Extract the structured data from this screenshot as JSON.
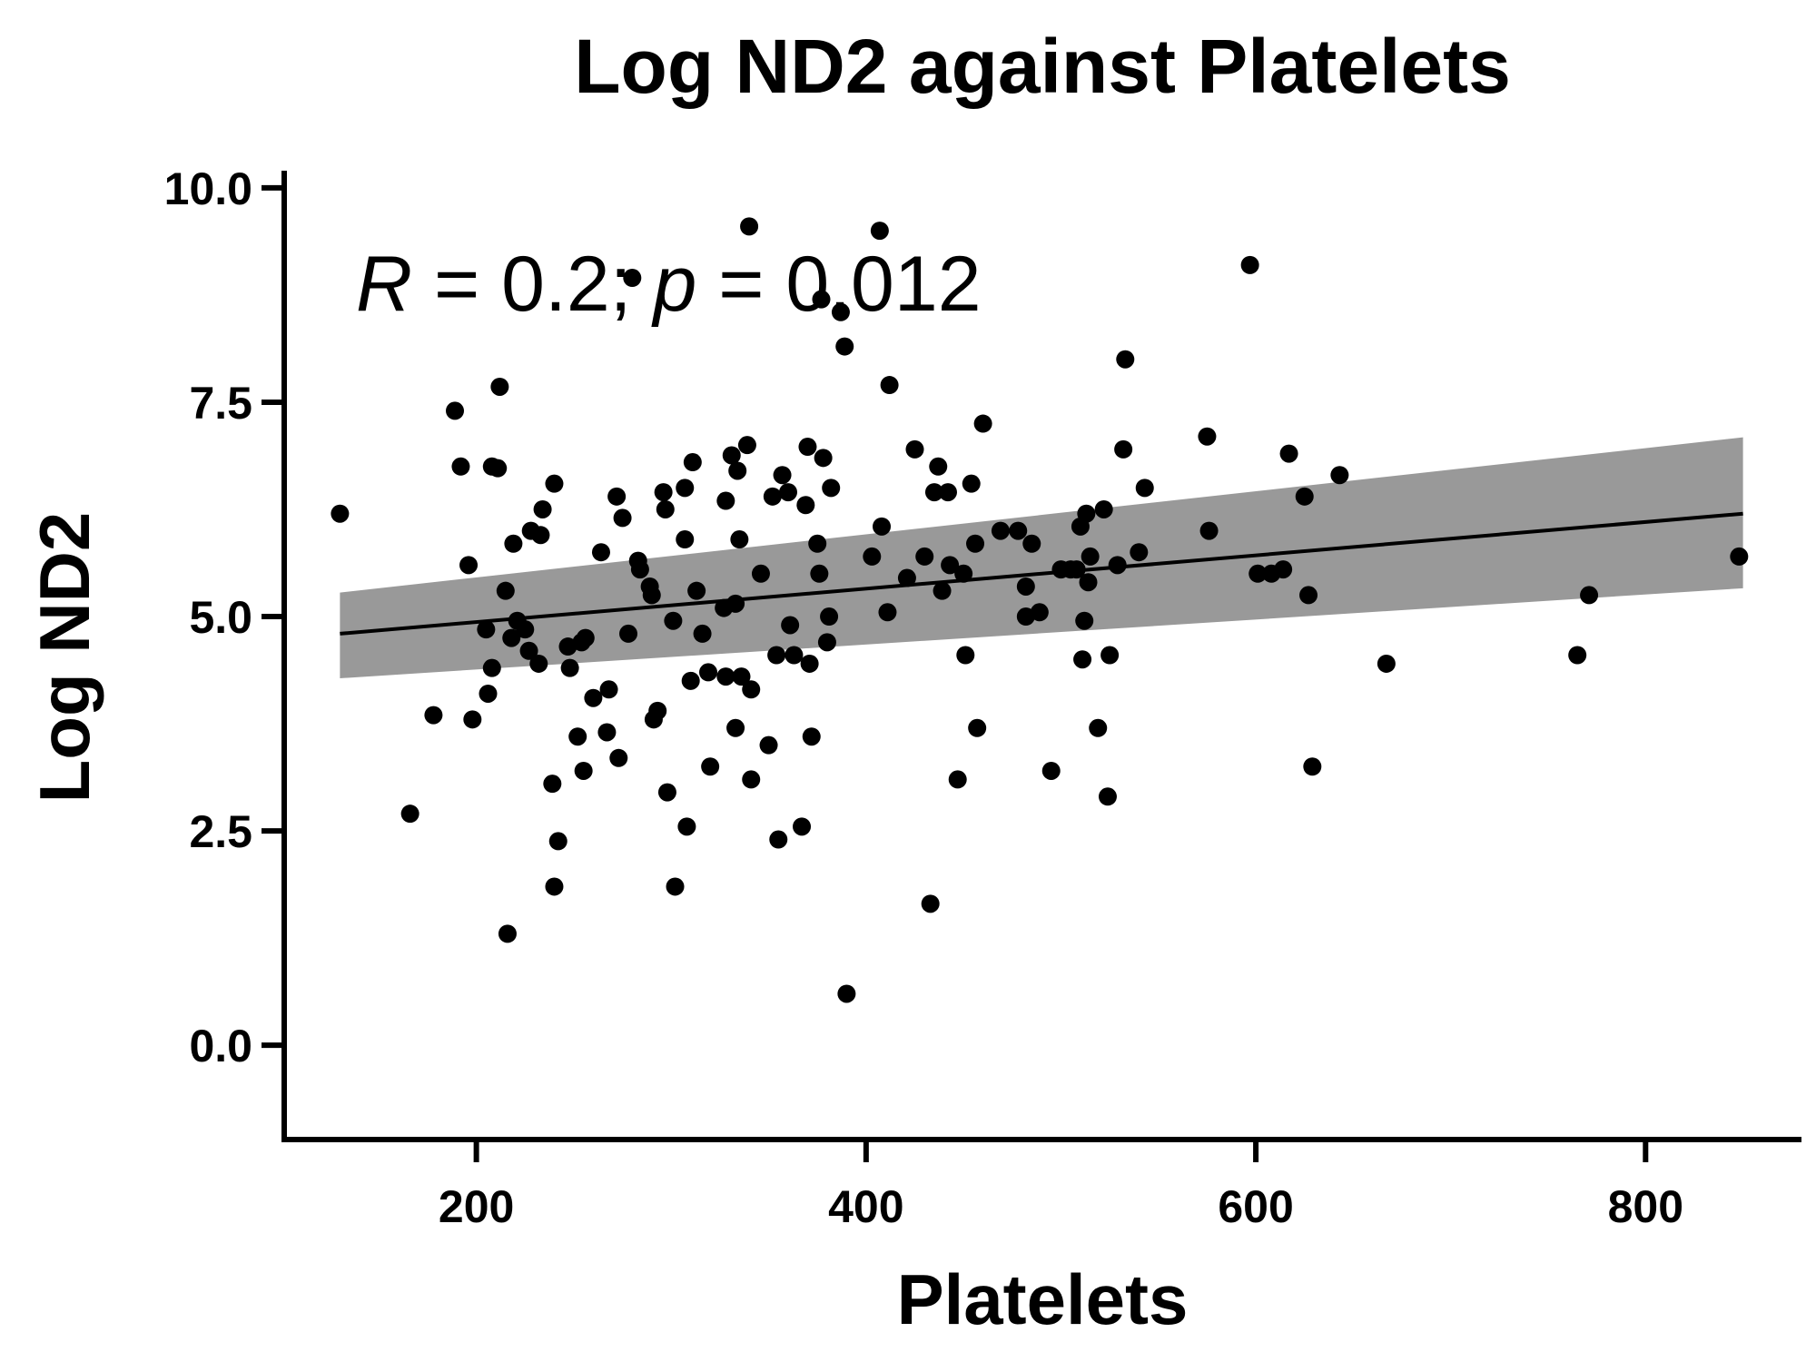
{
  "chart_data": {
    "type": "scatter",
    "title": "Log ND2 against Platelets",
    "xlabel": "Platelets",
    "ylabel": "Log ND2",
    "xlim": [
      100,
      880
    ],
    "ylim": [
      -1.1,
      10.2
    ],
    "xticks": [
      200,
      400,
      600,
      800
    ],
    "xtick_labels": [
      "200",
      "400",
      "600",
      "800"
    ],
    "yticks": [
      0,
      2.5,
      5,
      7.5,
      10
    ],
    "ytick_labels": [
      "0.0",
      "2.5",
      "5.0",
      "7.5",
      "10.0"
    ],
    "grid": false,
    "legend": "none",
    "annotation": {
      "r_symbol": "R",
      "r_text": " = 0.2; ",
      "p_symbol": "p",
      "p_text": " = 0.012"
    },
    "colors": {
      "points": "#000000",
      "fit_line": "#000000",
      "confidence_band": "#999999"
    },
    "fit": {
      "type": "linear",
      "x": [
        130,
        850
      ],
      "y": [
        4.8,
        6.2
      ],
      "ci_lower": [
        4.28,
        5.33
      ],
      "ci_upper": [
        5.28,
        7.09
      ]
    },
    "series": [
      {
        "points": [
          {
            "x": 130,
            "y": 6.2
          },
          {
            "x": 166,
            "y": 2.7
          },
          {
            "x": 178,
            "y": 3.85
          },
          {
            "x": 189,
            "y": 7.4
          },
          {
            "x": 192,
            "y": 6.75
          },
          {
            "x": 196,
            "y": 5.6
          },
          {
            "x": 198,
            "y": 3.8
          },
          {
            "x": 205,
            "y": 4.85
          },
          {
            "x": 206,
            "y": 4.1
          },
          {
            "x": 208,
            "y": 4.4
          },
          {
            "x": 208,
            "y": 6.75
          },
          {
            "x": 211,
            "y": 6.73
          },
          {
            "x": 212,
            "y": 7.68
          },
          {
            "x": 215,
            "y": 5.3
          },
          {
            "x": 216,
            "y": 1.3
          },
          {
            "x": 219,
            "y": 5.85
          },
          {
            "x": 218,
            "y": 4.75
          },
          {
            "x": 221,
            "y": 4.95
          },
          {
            "x": 225,
            "y": 4.85
          },
          {
            "x": 227,
            "y": 4.6
          },
          {
            "x": 228,
            "y": 6.0
          },
          {
            "x": 232,
            "y": 4.45
          },
          {
            "x": 233,
            "y": 5.95
          },
          {
            "x": 234,
            "y": 6.25
          },
          {
            "x": 239,
            "y": 3.05
          },
          {
            "x": 240,
            "y": 6.55
          },
          {
            "x": 240,
            "y": 1.85
          },
          {
            "x": 242,
            "y": 2.38
          },
          {
            "x": 247,
            "y": 4.65
          },
          {
            "x": 248,
            "y": 4.4
          },
          {
            "x": 252,
            "y": 3.6
          },
          {
            "x": 254,
            "y": 4.7
          },
          {
            "x": 255,
            "y": 3.2
          },
          {
            "x": 256,
            "y": 4.75
          },
          {
            "x": 260,
            "y": 4.05
          },
          {
            "x": 264,
            "y": 5.75
          },
          {
            "x": 267,
            "y": 3.65
          },
          {
            "x": 268,
            "y": 4.15
          },
          {
            "x": 272,
            "y": 6.4
          },
          {
            "x": 273,
            "y": 3.35
          },
          {
            "x": 275,
            "y": 6.15
          },
          {
            "x": 278,
            "y": 4.8
          },
          {
            "x": 280,
            "y": 8.95
          },
          {
            "x": 283,
            "y": 5.65
          },
          {
            "x": 284,
            "y": 5.55
          },
          {
            "x": 289,
            "y": 5.35
          },
          {
            "x": 290,
            "y": 5.25
          },
          {
            "x": 291,
            "y": 3.8
          },
          {
            "x": 293,
            "y": 3.9
          },
          {
            "x": 296,
            "y": 6.45
          },
          {
            "x": 297,
            "y": 6.25
          },
          {
            "x": 298,
            "y": 2.95
          },
          {
            "x": 301,
            "y": 4.95
          },
          {
            "x": 302,
            "y": 1.85
          },
          {
            "x": 307,
            "y": 5.9
          },
          {
            "x": 307,
            "y": 6.5
          },
          {
            "x": 308,
            "y": 2.55
          },
          {
            "x": 310,
            "y": 4.25
          },
          {
            "x": 311,
            "y": 6.8
          },
          {
            "x": 313,
            "y": 5.3
          },
          {
            "x": 316,
            "y": 4.8
          },
          {
            "x": 319,
            "y": 4.35
          },
          {
            "x": 320,
            "y": 3.25
          },
          {
            "x": 327,
            "y": 5.1
          },
          {
            "x": 328,
            "y": 6.35
          },
          {
            "x": 328,
            "y": 4.3
          },
          {
            "x": 331,
            "y": 6.88
          },
          {
            "x": 333,
            "y": 5.15
          },
          {
            "x": 333,
            "y": 3.7
          },
          {
            "x": 334,
            "y": 6.7
          },
          {
            "x": 335,
            "y": 5.9
          },
          {
            "x": 336,
            "y": 4.3
          },
          {
            "x": 339,
            "y": 7.0
          },
          {
            "x": 340,
            "y": 9.55
          },
          {
            "x": 341,
            "y": 4.15
          },
          {
            "x": 341,
            "y": 3.1
          },
          {
            "x": 346,
            "y": 5.5
          },
          {
            "x": 350,
            "y": 3.5
          },
          {
            "x": 352,
            "y": 6.4
          },
          {
            "x": 354,
            "y": 4.55
          },
          {
            "x": 355,
            "y": 2.4
          },
          {
            "x": 357,
            "y": 6.65
          },
          {
            "x": 360,
            "y": 6.45
          },
          {
            "x": 361,
            "y": 4.9
          },
          {
            "x": 363,
            "y": 4.55
          },
          {
            "x": 367,
            "y": 2.55
          },
          {
            "x": 369,
            "y": 6.3
          },
          {
            "x": 370,
            "y": 6.98
          },
          {
            "x": 371,
            "y": 4.45
          },
          {
            "x": 372,
            "y": 3.6
          },
          {
            "x": 375,
            "y": 5.85
          },
          {
            "x": 376,
            "y": 5.5
          },
          {
            "x": 377,
            "y": 8.7
          },
          {
            "x": 378,
            "y": 6.85
          },
          {
            "x": 380,
            "y": 4.7
          },
          {
            "x": 381,
            "y": 5.0
          },
          {
            "x": 382,
            "y": 6.5
          },
          {
            "x": 387,
            "y": 8.55
          },
          {
            "x": 389,
            "y": 8.15
          },
          {
            "x": 390,
            "y": 0.6
          },
          {
            "x": 403,
            "y": 5.7
          },
          {
            "x": 407,
            "y": 9.5
          },
          {
            "x": 408,
            "y": 6.05
          },
          {
            "x": 411,
            "y": 5.05
          },
          {
            "x": 412,
            "y": 7.7
          },
          {
            "x": 421,
            "y": 5.45
          },
          {
            "x": 425,
            "y": 6.95
          },
          {
            "x": 430,
            "y": 5.7
          },
          {
            "x": 433,
            "y": 1.65
          },
          {
            "x": 435,
            "y": 6.45
          },
          {
            "x": 437,
            "y": 6.75
          },
          {
            "x": 439,
            "y": 5.3
          },
          {
            "x": 442,
            "y": 6.45
          },
          {
            "x": 443,
            "y": 5.6
          },
          {
            "x": 447,
            "y": 3.1
          },
          {
            "x": 450,
            "y": 5.5
          },
          {
            "x": 451,
            "y": 4.55
          },
          {
            "x": 454,
            "y": 6.55
          },
          {
            "x": 456,
            "y": 5.85
          },
          {
            "x": 457,
            "y": 3.7
          },
          {
            "x": 460,
            "y": 7.25
          },
          {
            "x": 469,
            "y": 6.0
          },
          {
            "x": 478,
            "y": 6.0
          },
          {
            "x": 482,
            "y": 5.35
          },
          {
            "x": 482,
            "y": 5.0
          },
          {
            "x": 485,
            "y": 5.85
          },
          {
            "x": 489,
            "y": 5.05
          },
          {
            "x": 495,
            "y": 3.2
          },
          {
            "x": 500,
            "y": 5.55
          },
          {
            "x": 505,
            "y": 5.55
          },
          {
            "x": 508,
            "y": 5.55
          },
          {
            "x": 510,
            "y": 6.05
          },
          {
            "x": 511,
            "y": 4.5
          },
          {
            "x": 512,
            "y": 4.95
          },
          {
            "x": 513,
            "y": 6.2
          },
          {
            "x": 514,
            "y": 5.4
          },
          {
            "x": 515,
            "y": 5.7
          },
          {
            "x": 519,
            "y": 3.7
          },
          {
            "x": 522,
            "y": 6.25
          },
          {
            "x": 524,
            "y": 2.9
          },
          {
            "x": 525,
            "y": 4.55
          },
          {
            "x": 529,
            "y": 5.6
          },
          {
            "x": 532,
            "y": 6.95
          },
          {
            "x": 533,
            "y": 8.0
          },
          {
            "x": 540,
            "y": 5.75
          },
          {
            "x": 543,
            "y": 6.5
          },
          {
            "x": 575,
            "y": 7.1
          },
          {
            "x": 576,
            "y": 6.0
          },
          {
            "x": 597,
            "y": 9.1
          },
          {
            "x": 601,
            "y": 5.5
          },
          {
            "x": 608,
            "y": 5.5
          },
          {
            "x": 614,
            "y": 5.55
          },
          {
            "x": 617,
            "y": 6.9
          },
          {
            "x": 625,
            "y": 6.4
          },
          {
            "x": 627,
            "y": 5.25
          },
          {
            "x": 629,
            "y": 3.25
          },
          {
            "x": 643,
            "y": 6.65
          },
          {
            "x": 667,
            "y": 4.45
          },
          {
            "x": 765,
            "y": 4.55
          },
          {
            "x": 771,
            "y": 5.25
          },
          {
            "x": 848,
            "y": 5.7
          }
        ]
      }
    ]
  }
}
